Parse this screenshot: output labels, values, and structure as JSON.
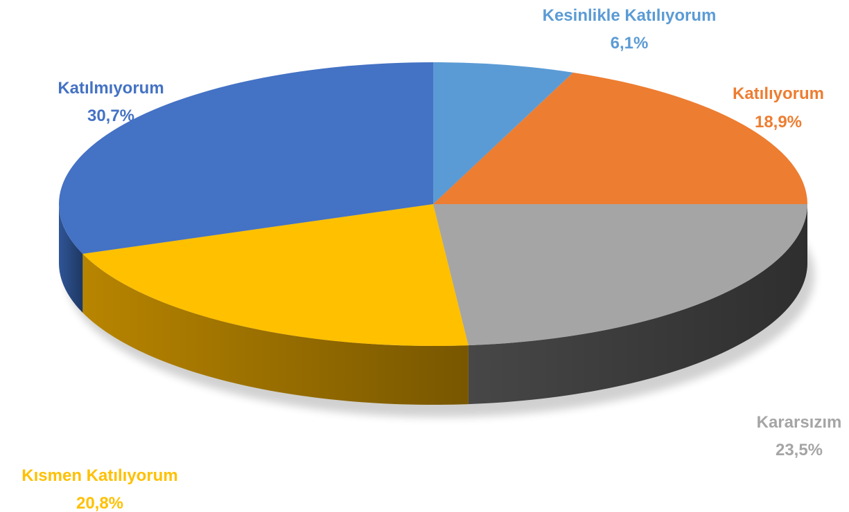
{
  "chart_data": {
    "type": "pie",
    "style": "3d",
    "start": "top",
    "direction": "clockwise",
    "legend": "none",
    "slices": [
      {
        "label": "Kesinlikle Katılıyorum",
        "value_label": "6,1%",
        "value": 6.1,
        "color": "#5B9BD5",
        "side_color": "#3F73A8"
      },
      {
        "label": "Katılıyorum",
        "value_label": "18,9%",
        "value": 18.9,
        "color": "#ED7D31",
        "side_color": "#B65A1C"
      },
      {
        "label": "Kararsızım",
        "value_label": "23,5%",
        "value": 23.5,
        "color": "#A5A5A5",
        "side_color": "#474747"
      },
      {
        "label": "Kısmen Katılıyorum",
        "value_label": "20,8%",
        "value": 20.8,
        "color": "#FFC000",
        "side_color": "#B88500"
      },
      {
        "label": "Katılmıyorum",
        "value_label": "30,7%",
        "value": 30.7,
        "color": "#4472C4",
        "side_color": "#2F5597"
      }
    ]
  }
}
